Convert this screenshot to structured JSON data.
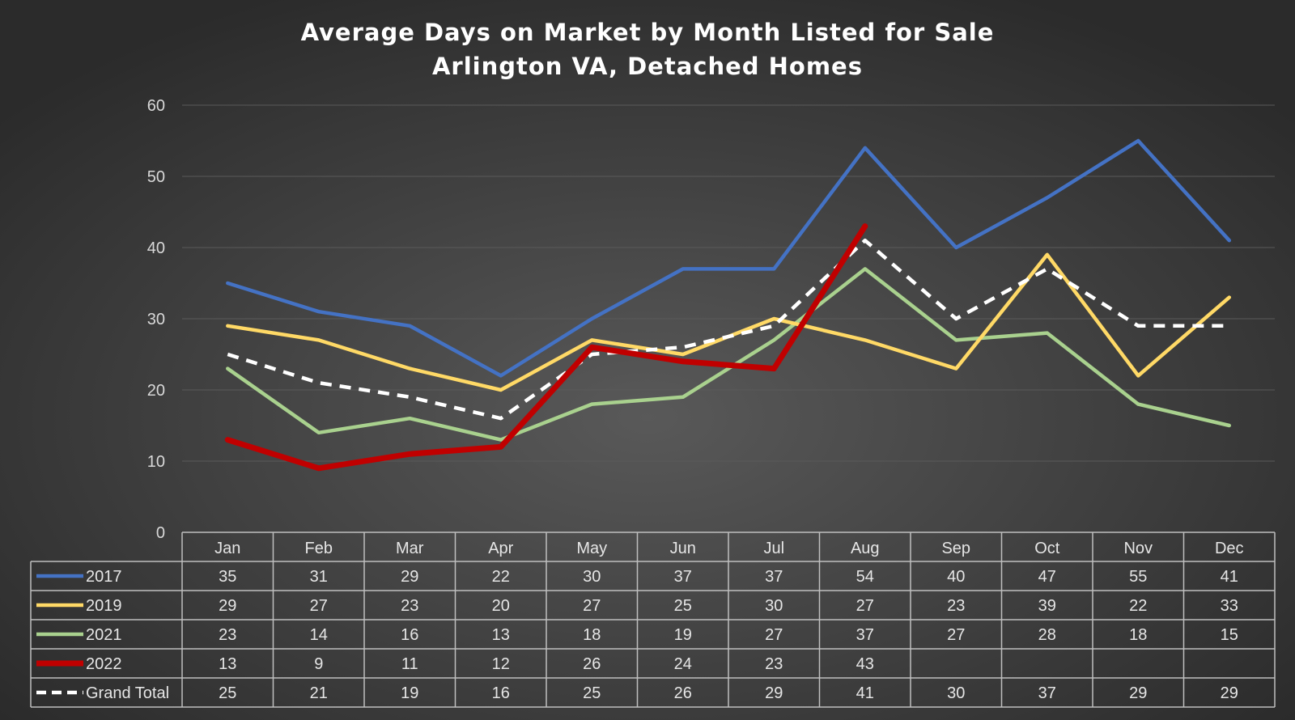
{
  "chart_data": {
    "type": "line",
    "title": "Average Days on Market by Month Listed for Sale",
    "subtitle": "Arlington VA, Detached Homes",
    "categories": [
      "Jan",
      "Feb",
      "Mar",
      "Apr",
      "May",
      "Jun",
      "Jul",
      "Aug",
      "Sep",
      "Oct",
      "Nov",
      "Dec"
    ],
    "ylim": [
      0,
      60
    ],
    "yticks": [
      "0",
      "10",
      "20",
      "30",
      "40",
      "50",
      "60"
    ],
    "grid": true,
    "legend": "data-table",
    "series": [
      {
        "name": "2017",
        "color": "#4472c4",
        "dash": false,
        "values": [
          35,
          31,
          29,
          22,
          30,
          37,
          37,
          54,
          40,
          47,
          55,
          41
        ],
        "labels": [
          "35",
          "31",
          "29",
          "22",
          "30",
          "37",
          "37",
          "54",
          "40",
          "47",
          "55",
          "41"
        ]
      },
      {
        "name": "2019",
        "color": "#ffd966",
        "dash": false,
        "values": [
          29,
          27,
          23,
          20,
          27,
          25,
          30,
          27,
          23,
          39,
          22,
          33
        ],
        "labels": [
          "29",
          "27",
          "23",
          "20",
          "27",
          "25",
          "30",
          "27",
          "23",
          "39",
          "22",
          "33"
        ]
      },
      {
        "name": "2021",
        "color": "#a9d18e",
        "dash": false,
        "values": [
          23,
          14,
          16,
          13,
          18,
          19,
          27,
          37,
          27,
          28,
          18,
          15
        ],
        "labels": [
          "23",
          "14",
          "16",
          "13",
          "18",
          "19",
          "27",
          "37",
          "27",
          "28",
          "18",
          "15"
        ]
      },
      {
        "name": "2022",
        "color": "#c00000",
        "dash": false,
        "thick": true,
        "values": [
          13,
          9,
          11,
          12,
          26,
          24,
          23,
          43,
          null,
          null,
          null,
          null
        ],
        "labels": [
          "13",
          "9",
          "11",
          "12",
          "26",
          "24",
          "23",
          "43",
          "",
          "",
          "",
          ""
        ]
      },
      {
        "name": "Grand Total",
        "color": "#ffffff",
        "dash": true,
        "values": [
          25,
          21,
          19,
          16,
          25,
          26,
          29,
          41,
          30,
          37,
          29,
          29
        ],
        "labels": [
          "25",
          "21",
          "19",
          "16",
          "25",
          "26",
          "29",
          "41",
          "30",
          "37",
          "29",
          "29"
        ]
      }
    ]
  }
}
